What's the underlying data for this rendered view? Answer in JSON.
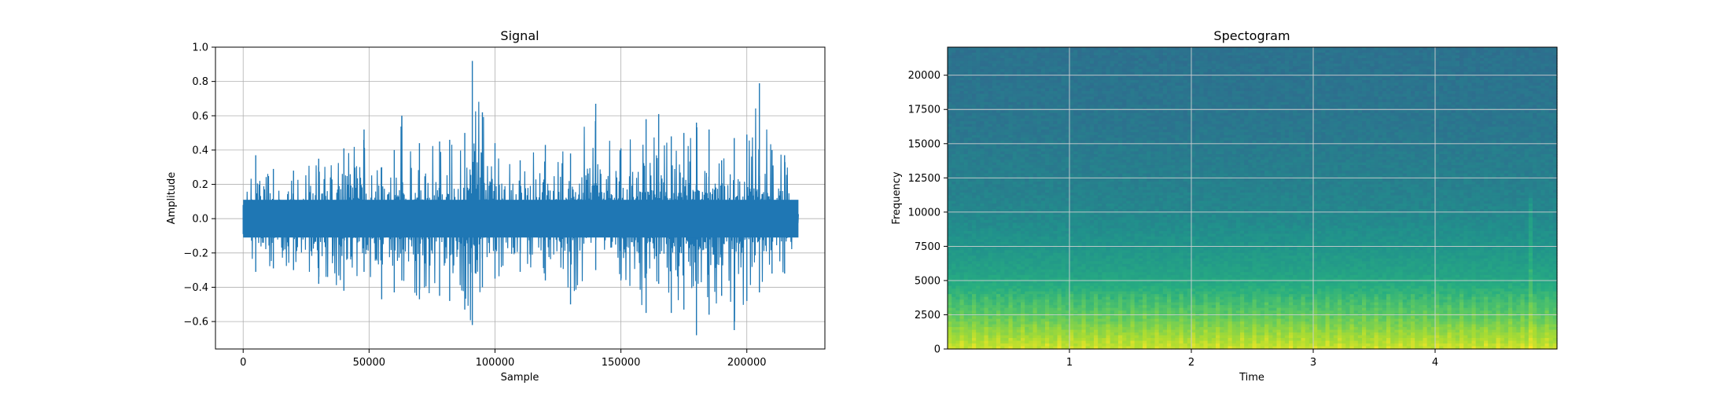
{
  "chart_data": [
    {
      "type": "line",
      "title": "Signal",
      "xlabel": "Sample",
      "ylabel": "Amplitude",
      "xlim": [
        -11000,
        231000
      ],
      "ylim": [
        -0.76,
        1.0
      ],
      "xticks": [
        0,
        50000,
        100000,
        150000,
        200000
      ],
      "xtick_labels": [
        "0",
        "50000",
        "100000",
        "150000",
        "200000"
      ],
      "yticks": [
        -0.6,
        -0.4,
        -0.2,
        0.0,
        0.2,
        0.4,
        0.6,
        0.8,
        1.0
      ],
      "ytick_labels": [
        "−0.6",
        "−0.4",
        "−0.2",
        "0.0",
        "0.2",
        "0.4",
        "0.6",
        "0.8",
        "1.0"
      ],
      "grid": true,
      "color": "#1f77b4",
      "n_samples": 220500,
      "envelope": {
        "x": [
          0,
          5000,
          12000,
          20000,
          30000,
          40000,
          48000,
          55000,
          60000,
          63000,
          70000,
          78000,
          82000,
          88000,
          91000,
          95000,
          100000,
          110000,
          120000,
          130000,
          140000,
          150000,
          160000,
          165000,
          170000,
          175000,
          180000,
          185000,
          190000,
          195000,
          200000,
          205000,
          210000,
          215000,
          220000
        ],
        "max": [
          0.08,
          0.37,
          0.29,
          0.28,
          0.35,
          0.41,
          0.52,
          0.3,
          0.4,
          0.6,
          0.44,
          0.45,
          0.46,
          0.5,
          0.92,
          0.62,
          0.44,
          0.34,
          0.43,
          0.38,
          0.67,
          0.41,
          0.58,
          0.61,
          0.48,
          0.5,
          0.56,
          0.52,
          0.34,
          0.47,
          0.49,
          0.79,
          0.4,
          0.37,
          0.1
        ],
        "min": [
          -0.09,
          -0.31,
          -0.29,
          -0.3,
          -0.38,
          -0.42,
          -0.31,
          -0.47,
          -0.43,
          -0.36,
          -0.47,
          -0.45,
          -0.48,
          -0.53,
          -0.62,
          -0.4,
          -0.35,
          -0.31,
          -0.36,
          -0.5,
          -0.3,
          -0.36,
          -0.55,
          -0.38,
          -0.55,
          -0.53,
          -0.68,
          -0.56,
          -0.45,
          -0.65,
          -0.48,
          -0.43,
          -0.32,
          -0.32,
          -0.1
        ]
      }
    },
    {
      "type": "heatmap",
      "title": "Spectogram",
      "xlabel": "Time",
      "ylabel": "Frequency",
      "xlim": [
        0,
        5.0
      ],
      "ylim": [
        0,
        22050
      ],
      "xticks": [
        1,
        2,
        3,
        4
      ],
      "xtick_labels": [
        "1",
        "2",
        "3",
        "4"
      ],
      "yticks": [
        0,
        2500,
        5000,
        7500,
        10000,
        12500,
        15000,
        17500,
        20000
      ],
      "ytick_labels": [
        "0",
        "2500",
        "5000",
        "7500",
        "10000",
        "12500",
        "15000",
        "17500",
        "20000"
      ],
      "grid": true,
      "colormap": "viridis",
      "band_levels": {
        "frequency": [
          0,
          1000,
          2500,
          4000,
          5500,
          7500,
          9500,
          11500,
          14000,
          16000,
          18000,
          22050
        ],
        "level": [
          0.93,
          0.86,
          0.75,
          0.66,
          0.58,
          0.52,
          0.47,
          0.44,
          0.42,
          0.4,
          0.39,
          0.38
        ]
      }
    }
  ]
}
